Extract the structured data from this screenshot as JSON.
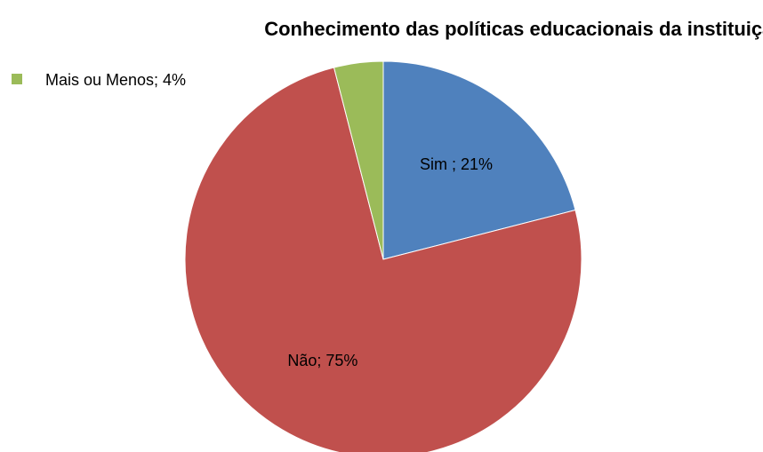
{
  "chart_data": {
    "type": "pie",
    "title": "Conhecimento das políticas educacionais da instituição",
    "categories": [
      "Sim",
      "Não",
      "Mais ou Menos"
    ],
    "values": [
      21,
      75,
      4
    ],
    "value_labels": [
      "Sim ; 21%",
      "Não; 75%",
      "Mais ou Menos; 4%"
    ],
    "colors": [
      "#4f81bd",
      "#c0504d",
      "#9bbb59"
    ]
  }
}
